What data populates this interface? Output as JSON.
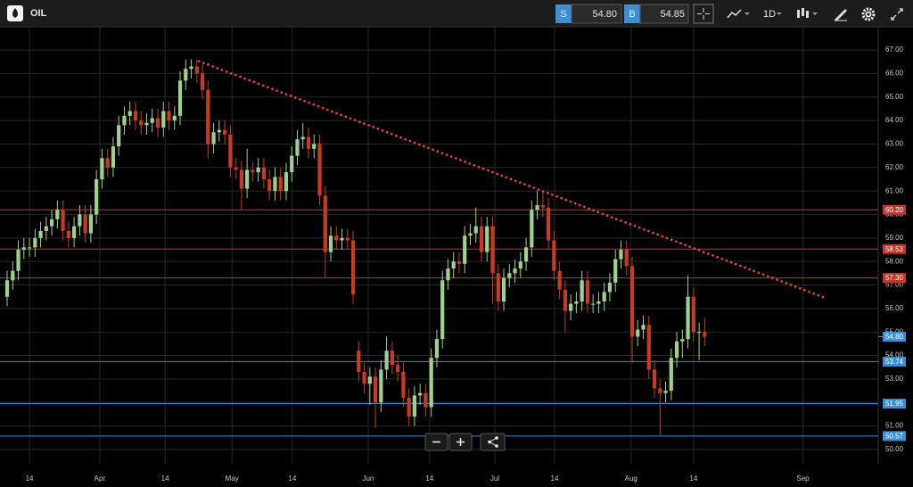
{
  "toolbar": {
    "symbol": "OIL",
    "sell_label": "S",
    "sell_price": "54.80",
    "buy_label": "B",
    "buy_price": "54.85",
    "timeframe": "1D"
  },
  "chart_data": {
    "type": "candlestick",
    "open": [
      56.5,
      57.2,
      57.6,
      58.5,
      58.6,
      58.6,
      59.0,
      59.3,
      59.5,
      59.8,
      60.2,
      59.3,
      59.0,
      59.5,
      60.0,
      59.2,
      60.0,
      61.5,
      62.4,
      62.0,
      62.9,
      63.8,
      64.2,
      64.4,
      64.0,
      63.8,
      63.9,
      64.1,
      63.7,
      64.4,
      64.0,
      64.2,
      65.7,
      66.2,
      66.3,
      66.0,
      65.3,
      63.0,
      63.5,
      63.6,
      63.4,
      62.0,
      61.9,
      61.1,
      61.9,
      61.8,
      62.0,
      61.5,
      61.0,
      61.6,
      61.0,
      61.8,
      62.5,
      63.2,
      63.3,
      62.8,
      63.0,
      60.8,
      58.4,
      59.1,
      58.9,
      59.0,
      58.9,
      54.2,
      53.3,
      52.8,
      53.1,
      52.0,
      53.4,
      54.2,
      53.6,
      53.3,
      52.2,
      51.4,
      52.3,
      52.4,
      51.8,
      53.9,
      54.7,
      57.2,
      57.7,
      58.0,
      57.9,
      59.1,
      59.2,
      59.5,
      58.4,
      59.5,
      57.5,
      56.3,
      57.3,
      57.5,
      57.7,
      58.0,
      58.6,
      60.2,
      60.4,
      60.3,
      58.9,
      57.6,
      56.8,
      55.9,
      56.2,
      56.3,
      57.2,
      56.2,
      56.2,
      56.3,
      56.7,
      57.1,
      58.1,
      58.5,
      57.8,
      54.8,
      55.1,
      55.3,
      53.4,
      52.6,
      52.4,
      52.5,
      53.9,
      54.6,
      54.7,
      56.5,
      55.0,
      55.0
    ],
    "high": [
      57.6,
      58.0,
      58.9,
      59.0,
      59.0,
      59.4,
      59.7,
      59.9,
      60.2,
      60.6,
      60.6,
      59.7,
      59.9,
      60.4,
      60.4,
      60.4,
      61.9,
      62.8,
      62.8,
      63.3,
      64.2,
      64.6,
      64.8,
      64.8,
      64.4,
      64.3,
      64.5,
      64.5,
      64.8,
      64.8,
      64.6,
      66.1,
      66.6,
      66.6,
      66.6,
      66.4,
      65.7,
      63.9,
      64.0,
      64.0,
      63.8,
      62.4,
      62.3,
      62.8,
      62.2,
      62.4,
      62.4,
      61.9,
      62.0,
      62.0,
      62.2,
      62.9,
      63.6,
      63.9,
      63.7,
      63.4,
      63.4,
      61.2,
      59.5,
      59.5,
      59.4,
      59.4,
      59.3,
      54.6,
      53.7,
      53.5,
      53.5,
      53.8,
      54.8,
      54.6,
      54.0,
      53.7,
      52.6,
      52.7,
      52.8,
      52.8,
      54.3,
      55.1,
      57.6,
      58.1,
      58.4,
      58.4,
      59.5,
      59.6,
      60.3,
      59.9,
      59.9,
      59.9,
      57.9,
      57.7,
      57.9,
      58.1,
      58.4,
      59.0,
      60.6,
      61.0,
      61.0,
      60.7,
      59.3,
      58.0,
      57.2,
      56.6,
      56.7,
      57.6,
      57.6,
      56.6,
      56.7,
      57.1,
      57.5,
      58.5,
      58.9,
      58.9,
      58.2,
      55.5,
      55.7,
      55.7,
      53.8,
      53.0,
      52.9,
      54.3,
      55.0,
      55.1,
      57.4,
      56.9,
      55.4,
      55.6
    ],
    "low": [
      56.1,
      56.8,
      57.2,
      58.1,
      58.2,
      58.2,
      58.6,
      58.9,
      59.1,
      59.4,
      58.9,
      58.6,
      58.6,
      59.1,
      58.8,
      58.8,
      59.6,
      61.1,
      61.6,
      61.6,
      62.5,
      63.4,
      63.8,
      63.6,
      63.4,
      63.4,
      63.5,
      63.3,
      63.3,
      63.6,
      63.6,
      63.8,
      65.3,
      65.8,
      65.6,
      64.9,
      62.4,
      62.6,
      63.1,
      63.0,
      61.6,
      61.5,
      60.2,
      60.7,
      61.4,
      61.4,
      61.1,
      60.6,
      60.6,
      60.6,
      60.6,
      61.4,
      62.1,
      62.8,
      62.4,
      62.4,
      60.4,
      57.3,
      58.0,
      58.5,
      58.5,
      58.5,
      56.2,
      52.9,
      52.4,
      51.9,
      50.9,
      51.6,
      53.0,
      53.2,
      52.9,
      51.8,
      51.0,
      51.0,
      51.9,
      51.4,
      51.4,
      53.5,
      54.3,
      56.8,
      57.3,
      57.5,
      57.5,
      58.7,
      58.8,
      58.0,
      58.0,
      56.2,
      55.9,
      55.9,
      56.9,
      57.1,
      57.3,
      57.6,
      58.2,
      59.8,
      59.9,
      58.5,
      57.2,
      56.4,
      55.0,
      55.5,
      55.8,
      55.9,
      55.8,
      55.8,
      55.8,
      55.9,
      56.3,
      56.7,
      57.7,
      57.4,
      53.7,
      54.4,
      54.7,
      53.0,
      52.2,
      50.6,
      52.0,
      52.1,
      53.5,
      53.9,
      54.3,
      54.6,
      53.8,
      54.4
    ],
    "close": [
      57.2,
      57.6,
      58.5,
      58.6,
      58.6,
      59.0,
      59.3,
      59.5,
      59.8,
      60.2,
      59.3,
      59.0,
      59.5,
      60.0,
      59.2,
      60.0,
      61.5,
      62.4,
      62.0,
      62.9,
      63.8,
      64.2,
      64.4,
      64.0,
      63.8,
      63.9,
      64.1,
      63.7,
      64.4,
      64.0,
      64.2,
      65.7,
      66.2,
      66.3,
      66.0,
      65.3,
      63.0,
      63.5,
      63.6,
      63.4,
      62.0,
      61.9,
      61.1,
      61.9,
      61.8,
      62.0,
      61.5,
      61.0,
      61.6,
      61.0,
      61.8,
      62.5,
      63.2,
      63.3,
      62.8,
      63.0,
      60.8,
      58.4,
      59.1,
      58.9,
      59.0,
      58.9,
      56.6,
      53.3,
      52.8,
      53.1,
      52.0,
      53.4,
      54.2,
      53.6,
      53.3,
      52.2,
      51.4,
      52.3,
      52.4,
      51.8,
      53.9,
      54.7,
      57.2,
      57.7,
      58.0,
      57.9,
      59.1,
      59.2,
      59.5,
      58.4,
      59.5,
      57.5,
      56.3,
      57.3,
      57.5,
      57.7,
      58.0,
      58.6,
      60.2,
      60.4,
      60.3,
      58.9,
      57.6,
      56.8,
      55.9,
      56.2,
      56.3,
      57.2,
      56.2,
      56.2,
      56.3,
      56.7,
      57.1,
      58.1,
      58.5,
      57.8,
      54.8,
      55.1,
      55.3,
      53.4,
      52.6,
      52.4,
      52.5,
      53.9,
      54.6,
      54.7,
      56.5,
      55.0,
      55.0,
      54.8
    ],
    "up_color": "#9fd08f",
    "down_color": "#c93a24",
    "xlim": [
      -1.28,
      156.1
    ],
    "xticks": [
      {
        "value": 4.0,
        "label": "14"
      },
      {
        "value": 16.6,
        "label": "Apr"
      },
      {
        "value": 28.3,
        "label": "14"
      },
      {
        "value": 40.3,
        "label": "May"
      },
      {
        "value": 51.1,
        "label": "14"
      },
      {
        "value": 64.7,
        "label": "Jun"
      },
      {
        "value": 75.7,
        "label": "14"
      },
      {
        "value": 87.4,
        "label": "Jul"
      },
      {
        "value": 98.1,
        "label": "14"
      },
      {
        "value": 111.8,
        "label": "Aug"
      },
      {
        "value": 123.0,
        "label": "14"
      },
      {
        "value": 142.6,
        "label": "Sep"
      }
    ],
    "ylim": [
      49.39,
      67.99
    ],
    "yticks": [
      {
        "value": 50,
        "label": "50.00"
      },
      {
        "value": 51,
        "label": "51.00"
      },
      {
        "value": 52,
        "label": "52.00"
      },
      {
        "value": 53,
        "label": "53.00"
      },
      {
        "value": 54,
        "label": "54.00"
      },
      {
        "value": 55,
        "label": "55.00"
      },
      {
        "value": 56,
        "label": "56.00"
      },
      {
        "value": 57,
        "label": "57.00"
      },
      {
        "value": 58,
        "label": "58.00"
      },
      {
        "value": 59,
        "label": "59.00"
      },
      {
        "value": 60,
        "label": "60.00"
      },
      {
        "value": 61,
        "label": "61.00"
      },
      {
        "value": 62,
        "label": "62.00"
      },
      {
        "value": 63,
        "label": "63.00"
      },
      {
        "value": 64,
        "label": "64.00"
      },
      {
        "value": 65,
        "label": "65.00"
      },
      {
        "value": 66,
        "label": "66.00"
      },
      {
        "value": 67,
        "label": "67.00"
      }
    ],
    "grid": true,
    "levels": [
      {
        "value": 60.2,
        "label": "60.20",
        "color": "#c0392b"
      },
      {
        "value": 58.53,
        "label": "58.53",
        "color": "#c0392b"
      },
      {
        "value": 57.3,
        "label": "57.30",
        "color": "#c0392b"
      },
      {
        "value": 53.74,
        "label": "53.74",
        "color": "#3a8fd8"
      },
      {
        "value": 51.95,
        "label": "51.95",
        "color": "#3a8fd8"
      },
      {
        "value": 50.57,
        "label": "50.57",
        "color": "#3a8fd8"
      }
    ],
    "last_price": {
      "value": 54.8,
      "label": "54.80",
      "color": "#3a8fd8"
    },
    "trendline": {
      "x": [
        34.2,
        146.6
      ],
      "y": [
        66.54,
        56.45
      ],
      "color": "#e0443a"
    }
  }
}
